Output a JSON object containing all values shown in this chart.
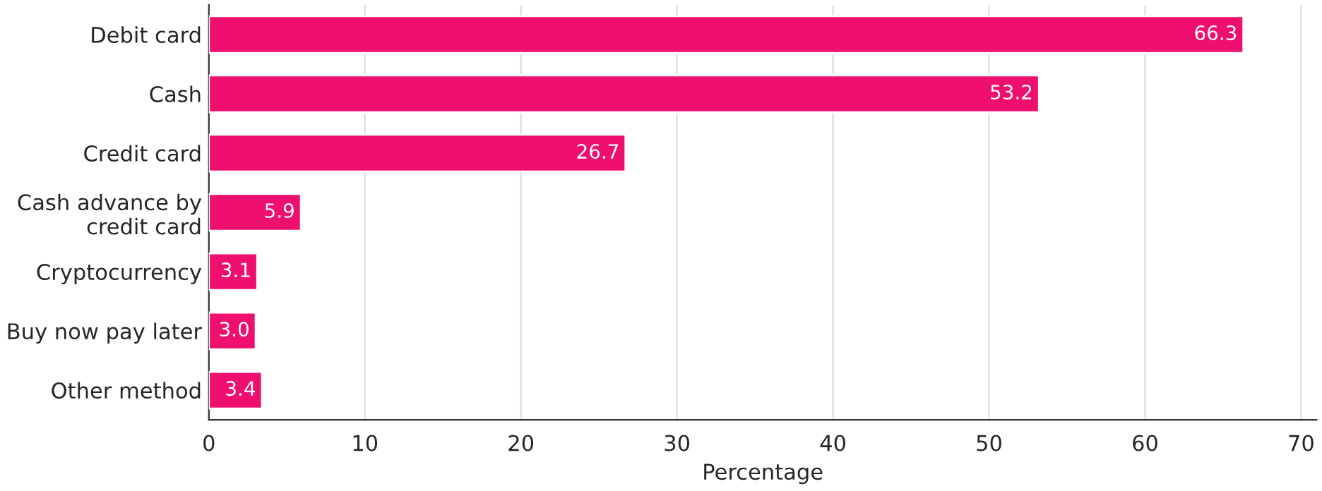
{
  "chart_data": {
    "type": "bar",
    "orientation": "horizontal",
    "xlabel": "Percentage",
    "categories": [
      "Debit card",
      "Cash",
      "Credit card",
      "Cash advance by\ncredit card",
      "Cryptocurrency",
      "Buy now pay later",
      "Other method"
    ],
    "values": [
      66.3,
      53.2,
      26.7,
      5.9,
      3.1,
      3.0,
      3.4
    ],
    "value_labels": [
      "66.3",
      "53.2",
      "26.7",
      "5.9",
      "3.1",
      "3.0",
      "3.4"
    ],
    "color": "#ee0f6e",
    "xlim": [
      0,
      71
    ],
    "xticks": [
      0,
      10,
      20,
      30,
      40,
      50,
      60,
      70
    ],
    "grid": "x",
    "legend": false
  }
}
